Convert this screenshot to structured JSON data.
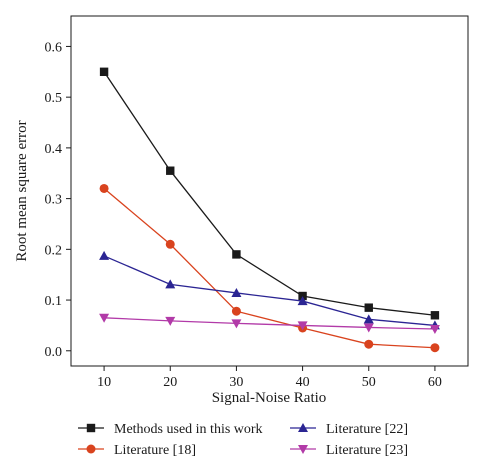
{
  "chart_data": {
    "type": "line",
    "title": "",
    "xlabel": "Signal-Noise Ratio",
    "ylabel": "Root mean square error",
    "x": [
      10,
      20,
      30,
      40,
      50,
      60
    ],
    "x_ticks": [
      "10",
      "20",
      "30",
      "40",
      "50",
      "60"
    ],
    "y_ticks": [
      "0.0",
      "0.1",
      "0.2",
      "0.3",
      "0.4",
      "0.5",
      "0.6"
    ],
    "xlim": [
      5,
      65
    ],
    "ylim": [
      -0.03,
      0.66
    ],
    "grid": false,
    "legend_position": "bottom",
    "series": [
      {
        "name": "Methods used in this work",
        "color": "#1a1a1a",
        "marker": "square",
        "values": [
          0.55,
          0.355,
          0.19,
          0.108,
          0.085,
          0.07
        ]
      },
      {
        "name": "Literature [18]",
        "color": "#d9431e",
        "marker": "circle",
        "values": [
          0.32,
          0.21,
          0.078,
          0.045,
          0.013,
          0.006
        ]
      },
      {
        "name": "Literature [22]",
        "color": "#2b2593",
        "marker": "triangle-up",
        "values": [
          0.187,
          0.131,
          0.114,
          0.098,
          0.062,
          0.05
        ]
      },
      {
        "name": "Literature [23]",
        "color": "#b23aa8",
        "marker": "triangle-down",
        "values": [
          0.065,
          0.059,
          0.054,
          0.05,
          0.046,
          0.043
        ]
      }
    ]
  }
}
